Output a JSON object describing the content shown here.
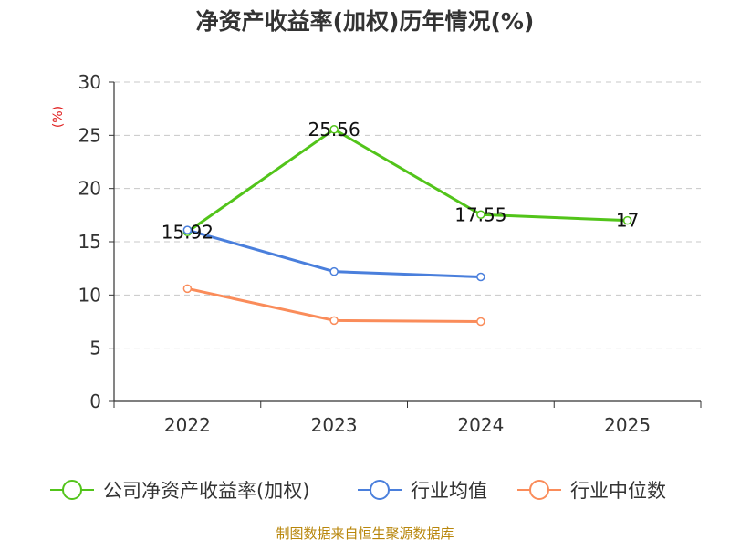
{
  "chart_data": {
    "type": "line",
    "title": "净资产收益率(加权)历年情况(%)",
    "ylabel": "(%)",
    "xlabel": "",
    "categories": [
      "2022",
      "2023",
      "2024",
      "2025"
    ],
    "ylim": [
      0,
      30
    ],
    "yticks": [
      0,
      5,
      10,
      15,
      20,
      25,
      30
    ],
    "grid": true,
    "legend_position": "bottom",
    "series": [
      {
        "name": "公司净资产收益率(加权)",
        "color": "#52c41a",
        "values": [
          15.92,
          25.56,
          17.55,
          17
        ],
        "labels": [
          "15.92",
          "25.56",
          "17.55",
          "17"
        ]
      },
      {
        "name": "行业均值",
        "color": "#4a7fdc",
        "values": [
          16.1,
          12.2,
          11.7,
          null
        ]
      },
      {
        "name": "行业中位数",
        "color": "#fa8c5a",
        "values": [
          10.6,
          7.6,
          7.5,
          null
        ]
      }
    ],
    "source": "制图数据来自恒生聚源数据库"
  }
}
